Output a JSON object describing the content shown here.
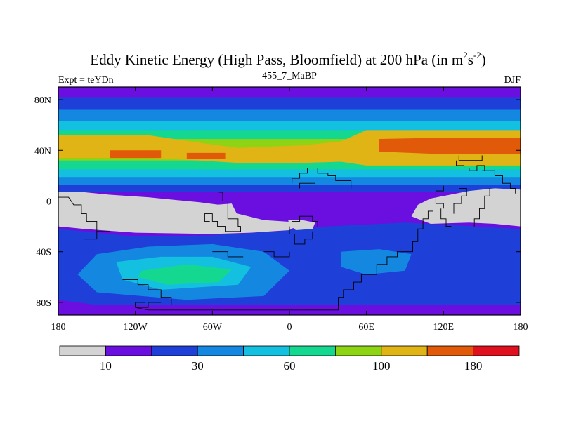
{
  "chart_data": {
    "type": "heatmap",
    "title_main": "Eddy Kinetic Energy (High Pass, Bloomfield) at 200 hPa (in m",
    "title_unit_m_exp": "2",
    "title_unit_s": "s",
    "title_unit_s_exp": "-2",
    "title_close": ")",
    "subtitle_left": "Expt = teYDn",
    "subtitle_center": "455_7_MaBP",
    "subtitle_right": "DJF",
    "x_axis": {
      "range": [
        -180,
        180
      ],
      "ticks": [
        {
          "value": -180,
          "label": "180"
        },
        {
          "value": -120,
          "label": "120W"
        },
        {
          "value": -60,
          "label": "60W"
        },
        {
          "value": 0,
          "label": "0"
        },
        {
          "value": 60,
          "label": "60E"
        },
        {
          "value": 120,
          "label": "120E"
        },
        {
          "value": 180,
          "label": "180"
        }
      ]
    },
    "y_axis": {
      "range": [
        -90,
        90
      ],
      "ticks": [
        {
          "value": 80,
          "label": "80N"
        },
        {
          "value": 40,
          "label": "40N"
        },
        {
          "value": 0,
          "label": "0"
        },
        {
          "value": -40,
          "label": "40S"
        },
        {
          "value": -80,
          "label": "80S"
        }
      ]
    },
    "colorbar": {
      "colors": [
        "#d3d3d3",
        "#6a0fe0",
        "#1e3fd8",
        "#1488e0",
        "#14c0e0",
        "#14d890",
        "#8cd414",
        "#e0b414",
        "#e05a0a",
        "#e0101e"
      ],
      "labels": [
        {
          "boundary": 1,
          "text": "10"
        },
        {
          "boundary": 3,
          "text": "30"
        },
        {
          "boundary": 5,
          "text": "60"
        },
        {
          "boundary": 7,
          "text": "100"
        },
        {
          "boundary": 9,
          "text": "180"
        }
      ]
    },
    "zonal_bands": [
      {
        "lat_top": 90,
        "lat_bottom": 82,
        "level": 1
      },
      {
        "lat_top": 82,
        "lat_bottom": 72,
        "level": 2
      },
      {
        "lat_top": 72,
        "lat_bottom": 63,
        "level": 3
      },
      {
        "lat_top": 63,
        "lat_bottom": 56,
        "level": 4
      },
      {
        "lat_top": 56,
        "lat_bottom": 49,
        "level": 5
      },
      {
        "lat_top": 49,
        "lat_bottom": 32,
        "level": 6
      },
      {
        "lat_top": 32,
        "lat_bottom": 25,
        "level": 5
      },
      {
        "lat_top": 25,
        "lat_bottom": 19,
        "level": 4
      },
      {
        "lat_top": 19,
        "lat_bottom": 13,
        "level": 3
      },
      {
        "lat_top": 13,
        "lat_bottom": 7,
        "level": 2
      },
      {
        "lat_top": 7,
        "lat_bottom": -90,
        "level": 1
      }
    ],
    "regions": [
      {
        "level": 7,
        "polygon": [
          [
            -180,
            52
          ],
          [
            -110,
            52
          ],
          [
            -70,
            46
          ],
          [
            -40,
            42
          ],
          [
            10,
            44
          ],
          [
            40,
            47
          ],
          [
            60,
            56
          ],
          [
            180,
            56
          ],
          [
            180,
            28
          ],
          [
            60,
            28
          ],
          [
            40,
            31
          ],
          [
            10,
            30
          ],
          [
            -40,
            30
          ],
          [
            -70,
            32
          ],
          [
            -110,
            34
          ],
          [
            -180,
            34
          ]
        ]
      },
      {
        "level": 8,
        "polygon": [
          [
            -140,
            40
          ],
          [
            -100,
            40
          ],
          [
            -100,
            34
          ],
          [
            -140,
            34
          ]
        ]
      },
      {
        "level": 8,
        "polygon": [
          [
            -80,
            38
          ],
          [
            -50,
            38
          ],
          [
            -50,
            33
          ],
          [
            -80,
            33
          ]
        ]
      },
      {
        "level": 8,
        "polygon": [
          [
            70,
            49
          ],
          [
            120,
            50
          ],
          [
            180,
            50
          ],
          [
            180,
            37
          ],
          [
            120,
            37
          ],
          [
            70,
            39
          ]
        ]
      },
      {
        "level": 2,
        "polygon": [
          [
            -180,
            -22
          ],
          [
            -120,
            -28
          ],
          [
            -60,
            -27
          ],
          [
            -10,
            -24
          ],
          [
            30,
            -20
          ],
          [
            90,
            -17
          ],
          [
            180,
            -22
          ],
          [
            180,
            -82
          ],
          [
            -150,
            -82
          ],
          [
            -180,
            -78
          ]
        ]
      },
      {
        "level": 3,
        "polygon": [
          [
            -150,
            -42
          ],
          [
            -110,
            -36
          ],
          [
            -60,
            -34
          ],
          [
            -20,
            -40
          ],
          [
            0,
            -55
          ],
          [
            -20,
            -75
          ],
          [
            -80,
            -78
          ],
          [
            -150,
            -72
          ],
          [
            -165,
            -58
          ]
        ]
      },
      {
        "level": 3,
        "polygon": [
          [
            40,
            -40
          ],
          [
            70,
            -38
          ],
          [
            95,
            -42
          ],
          [
            90,
            -55
          ],
          [
            60,
            -58
          ],
          [
            40,
            -52
          ]
        ]
      },
      {
        "level": 4,
        "polygon": [
          [
            -135,
            -48
          ],
          [
            -100,
            -44
          ],
          [
            -60,
            -44
          ],
          [
            -30,
            -52
          ],
          [
            -40,
            -66
          ],
          [
            -100,
            -70
          ],
          [
            -130,
            -62
          ]
        ]
      },
      {
        "level": 5,
        "polygon": [
          [
            -115,
            -55
          ],
          [
            -80,
            -50
          ],
          [
            -45,
            -54
          ],
          [
            -55,
            -64
          ],
          [
            -95,
            -66
          ],
          [
            -118,
            -60
          ]
        ]
      },
      {
        "level": 0,
        "polygon": [
          [
            -180,
            7
          ],
          [
            -160,
            7
          ],
          [
            -140,
            5
          ],
          [
            -110,
            3
          ],
          [
            -70,
            -1
          ],
          [
            -55,
            -3
          ],
          [
            -40,
            -10
          ],
          [
            -20,
            -15
          ],
          [
            10,
            -17
          ],
          [
            0,
            -23
          ],
          [
            -30,
            -25
          ],
          [
            -60,
            -26
          ],
          [
            -120,
            -25
          ],
          [
            -160,
            -22
          ],
          [
            -180,
            -20
          ]
        ]
      },
      {
        "level": 0,
        "polygon": [
          [
            -57,
            -3
          ],
          [
            -45,
            -2
          ],
          [
            -40,
            -12
          ],
          [
            -60,
            -12
          ],
          [
            -64,
            -6
          ]
        ]
      },
      {
        "level": 0,
        "polygon": [
          [
            -1,
            -15
          ],
          [
            10,
            -15
          ],
          [
            20,
            -17
          ],
          [
            18,
            -22
          ],
          [
            5,
            -23
          ],
          [
            0,
            -19
          ]
        ]
      },
      {
        "level": 0,
        "polygon": [
          [
            180,
            9
          ],
          [
            160,
            10
          ],
          [
            140,
            8
          ],
          [
            110,
            2
          ],
          [
            100,
            -3
          ],
          [
            95,
            -12
          ],
          [
            110,
            -18
          ],
          [
            140,
            -17
          ],
          [
            160,
            -18
          ],
          [
            180,
            -20
          ]
        ]
      }
    ],
    "coastlines": [
      [
        [
          -180,
          3
        ],
        [
          -172,
          3
        ],
        [
          -168,
          -3
        ],
        [
          -162,
          -3
        ],
        [
          -162,
          -10
        ],
        [
          -158,
          -10
        ],
        [
          -158,
          -16
        ],
        [
          -150,
          -16
        ],
        [
          -150,
          -24
        ]
      ],
      [
        [
          -160,
          -30
        ],
        [
          -150,
          -30
        ],
        [
          -150,
          -24
        ],
        [
          -140,
          -24
        ]
      ],
      [
        [
          -55,
          7
        ],
        [
          -52,
          7
        ],
        [
          -52,
          0
        ],
        [
          -48,
          0
        ],
        [
          -48,
          -14
        ],
        [
          -40,
          -14
        ],
        [
          -40,
          -20
        ],
        [
          -38,
          -20
        ],
        [
          -38,
          -24
        ],
        [
          -50,
          -24
        ],
        [
          -50,
          -20
        ],
        [
          -56,
          -20
        ],
        [
          -56,
          -16
        ],
        [
          -60,
          -16
        ],
        [
          -60,
          -10
        ],
        [
          -66,
          -10
        ],
        [
          -66,
          -16
        ],
        [
          -62,
          -16
        ]
      ],
      [
        [
          -60,
          -40
        ],
        [
          -48,
          -40
        ],
        [
          -48,
          -44
        ],
        [
          -36,
          -44
        ]
      ],
      [
        [
          -20,
          -40
        ],
        [
          -12,
          -40
        ],
        [
          -12,
          -44
        ],
        [
          0,
          -44
        ],
        [
          0,
          -40
        ]
      ],
      [
        [
          2,
          -16
        ],
        [
          8,
          -16
        ],
        [
          8,
          -12
        ],
        [
          18,
          -12
        ],
        [
          18,
          -16
        ],
        [
          22,
          -16
        ],
        [
          22,
          -20
        ]
      ],
      [
        [
          0,
          -20
        ],
        [
          0,
          -26
        ],
        [
          4,
          -26
        ],
        [
          4,
          -34
        ],
        [
          12,
          -34
        ],
        [
          12,
          -30
        ],
        [
          18,
          -30
        ],
        [
          18,
          -24
        ]
      ],
      [
        [
          2,
          14
        ],
        [
          2,
          18
        ],
        [
          8,
          18
        ],
        [
          8,
          22
        ],
        [
          14,
          22
        ],
        [
          14,
          26
        ],
        [
          22,
          26
        ],
        [
          22,
          22
        ],
        [
          30,
          22
        ],
        [
          30,
          20
        ],
        [
          36,
          20
        ],
        [
          36,
          16
        ],
        [
          48,
          16
        ],
        [
          48,
          10
        ]
      ],
      [
        [
          8,
          10
        ],
        [
          8,
          14
        ],
        [
          20,
          14
        ],
        [
          20,
          12
        ]
      ],
      [
        [
          130,
          32
        ],
        [
          130,
          28
        ],
        [
          136,
          28
        ],
        [
          136,
          26
        ],
        [
          140,
          26
        ],
        [
          140,
          24
        ],
        [
          146,
          24
        ],
        [
          146,
          28
        ],
        [
          152,
          28
        ],
        [
          152,
          24
        ]
      ],
      [
        [
          132,
          36
        ],
        [
          132,
          32
        ],
        [
          150,
          32
        ],
        [
          150,
          36
        ]
      ],
      [
        [
          150,
          24
        ],
        [
          160,
          24
        ],
        [
          160,
          20
        ],
        [
          166,
          20
        ],
        [
          166,
          14
        ],
        [
          172,
          14
        ],
        [
          172,
          10
        ],
        [
          176,
          10
        ],
        [
          176,
          6
        ]
      ],
      [
        [
          120,
          12
        ],
        [
          120,
          8
        ],
        [
          114,
          8
        ],
        [
          114,
          -2
        ],
        [
          120,
          -2
        ],
        [
          120,
          -6
        ]
      ],
      [
        [
          118,
          -6
        ],
        [
          118,
          -14
        ],
        [
          122,
          -14
        ],
        [
          122,
          -20
        ],
        [
          126,
          -20
        ]
      ],
      [
        [
          128,
          -10
        ],
        [
          128,
          -2
        ],
        [
          134,
          -2
        ],
        [
          134,
          4
        ],
        [
          138,
          4
        ],
        [
          138,
          10
        ],
        [
          132,
          10
        ]
      ],
      [
        [
          156,
          10
        ],
        [
          156,
          4
        ],
        [
          152,
          4
        ],
        [
          152,
          -6
        ],
        [
          148,
          -6
        ],
        [
          148,
          -14
        ],
        [
          144,
          -14
        ],
        [
          144,
          -20
        ]
      ],
      [
        [
          -130,
          -62
        ],
        [
          -118,
          -62
        ],
        [
          -118,
          -66
        ],
        [
          -110,
          -66
        ],
        [
          -110,
          -70
        ],
        [
          -100,
          -70
        ],
        [
          -100,
          -76
        ],
        [
          -92,
          -76
        ],
        [
          -92,
          -82
        ]
      ],
      [
        [
          -112,
          -80
        ],
        [
          -120,
          -80
        ],
        [
          -120,
          -84
        ],
        [
          -110,
          -84
        ],
        [
          -110,
          -80
        ],
        [
          -100,
          -80
        ]
      ],
      [
        [
          -120,
          -84
        ],
        [
          -110,
          -86
        ],
        [
          30,
          -86
        ],
        [
          38,
          -86
        ],
        [
          38,
          -76
        ],
        [
          42,
          -76
        ],
        [
          42,
          -70
        ],
        [
          50,
          -70
        ],
        [
          50,
          -64
        ],
        [
          56,
          -64
        ],
        [
          56,
          -58
        ],
        [
          68,
          -58
        ],
        [
          68,
          -50
        ],
        [
          76,
          -50
        ],
        [
          76,
          -44
        ],
        [
          84,
          -44
        ],
        [
          84,
          -40
        ],
        [
          86,
          -40
        ]
      ],
      [
        [
          86,
          -40
        ],
        [
          96,
          -40
        ],
        [
          96,
          -32
        ],
        [
          100,
          -32
        ],
        [
          100,
          -22
        ],
        [
          104,
          -22
        ],
        [
          104,
          -14
        ],
        [
          108,
          -14
        ],
        [
          108,
          -8
        ],
        [
          112,
          -8
        ]
      ]
    ]
  }
}
